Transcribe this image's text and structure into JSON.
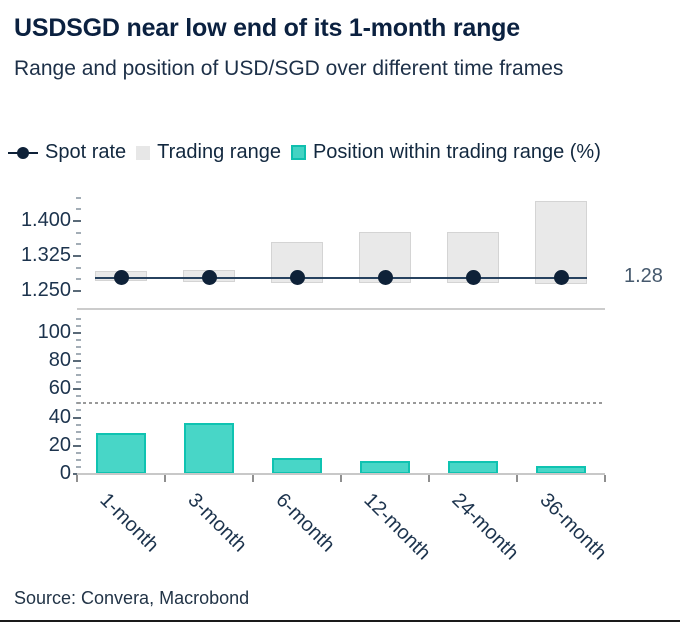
{
  "title": "USDSGD near low end of its 1-month range",
  "subtitle": "Range and position of USD/SGD over different time frames",
  "legend": [
    {
      "label": "Spot rate",
      "icon": "spot-line-dot"
    },
    {
      "label": "Trading range",
      "icon": "gray-swatch"
    },
    {
      "label": "Position within trading range (%)",
      "icon": "teal-swatch"
    }
  ],
  "source": "Source: Convera, Macrobond",
  "colors": {
    "title": "#0b2140",
    "text": "#12283f",
    "axis_text": "#1c334d",
    "spot_dot": "#0e2138",
    "spot_line": "#27425f",
    "trading_range_fill": "#e9e9e9",
    "trading_range_border": "#d4d4d4",
    "position_fill": "#48d6c7",
    "position_border": "#0fc3b1",
    "reference_dash": "#999999",
    "annotation": "#46596d"
  },
  "chart_data": [
    {
      "type": "bar",
      "name": "Trading range and spot rate",
      "categories": [
        "1-month",
        "3-month",
        "6-month",
        "12-month",
        "24-month",
        "36-month"
      ],
      "series": [
        {
          "name": "Trading range low",
          "values": [
            1.271,
            1.269,
            1.268,
            1.267,
            1.267,
            1.266
          ]
        },
        {
          "name": "Trading range high",
          "values": [
            1.292,
            1.295,
            1.355,
            1.377,
            1.376,
            1.443
          ]
        },
        {
          "name": "Spot rate",
          "values": [
            1.278,
            1.278,
            1.278,
            1.278,
            1.278,
            1.278
          ]
        }
      ],
      "spot_value": 1.278,
      "spot_annotation": "1.28",
      "ylim": [
        1.25,
        1.465
      ],
      "yticks": [
        1.25,
        1.325,
        1.4
      ],
      "ytick_labels": [
        "1.250",
        "1.325",
        "1.400"
      ],
      "minor_tick_step": 0.025,
      "grid": false,
      "legend_position": "top"
    },
    {
      "type": "bar",
      "name": "Position within trading range (%)",
      "categories": [
        "1-month",
        "3-month",
        "6-month",
        "12-month",
        "24-month",
        "36-month"
      ],
      "values": [
        29,
        36,
        11,
        9,
        9,
        6
      ],
      "ylim": [
        0,
        110
      ],
      "yticks": [
        0,
        20,
        40,
        60,
        80,
        100
      ],
      "ytick_labels": [
        "0",
        "20",
        "40",
        "60",
        "80",
        "100"
      ],
      "minor_tick_step": 5,
      "reference_line": 50,
      "grid": false
    }
  ]
}
